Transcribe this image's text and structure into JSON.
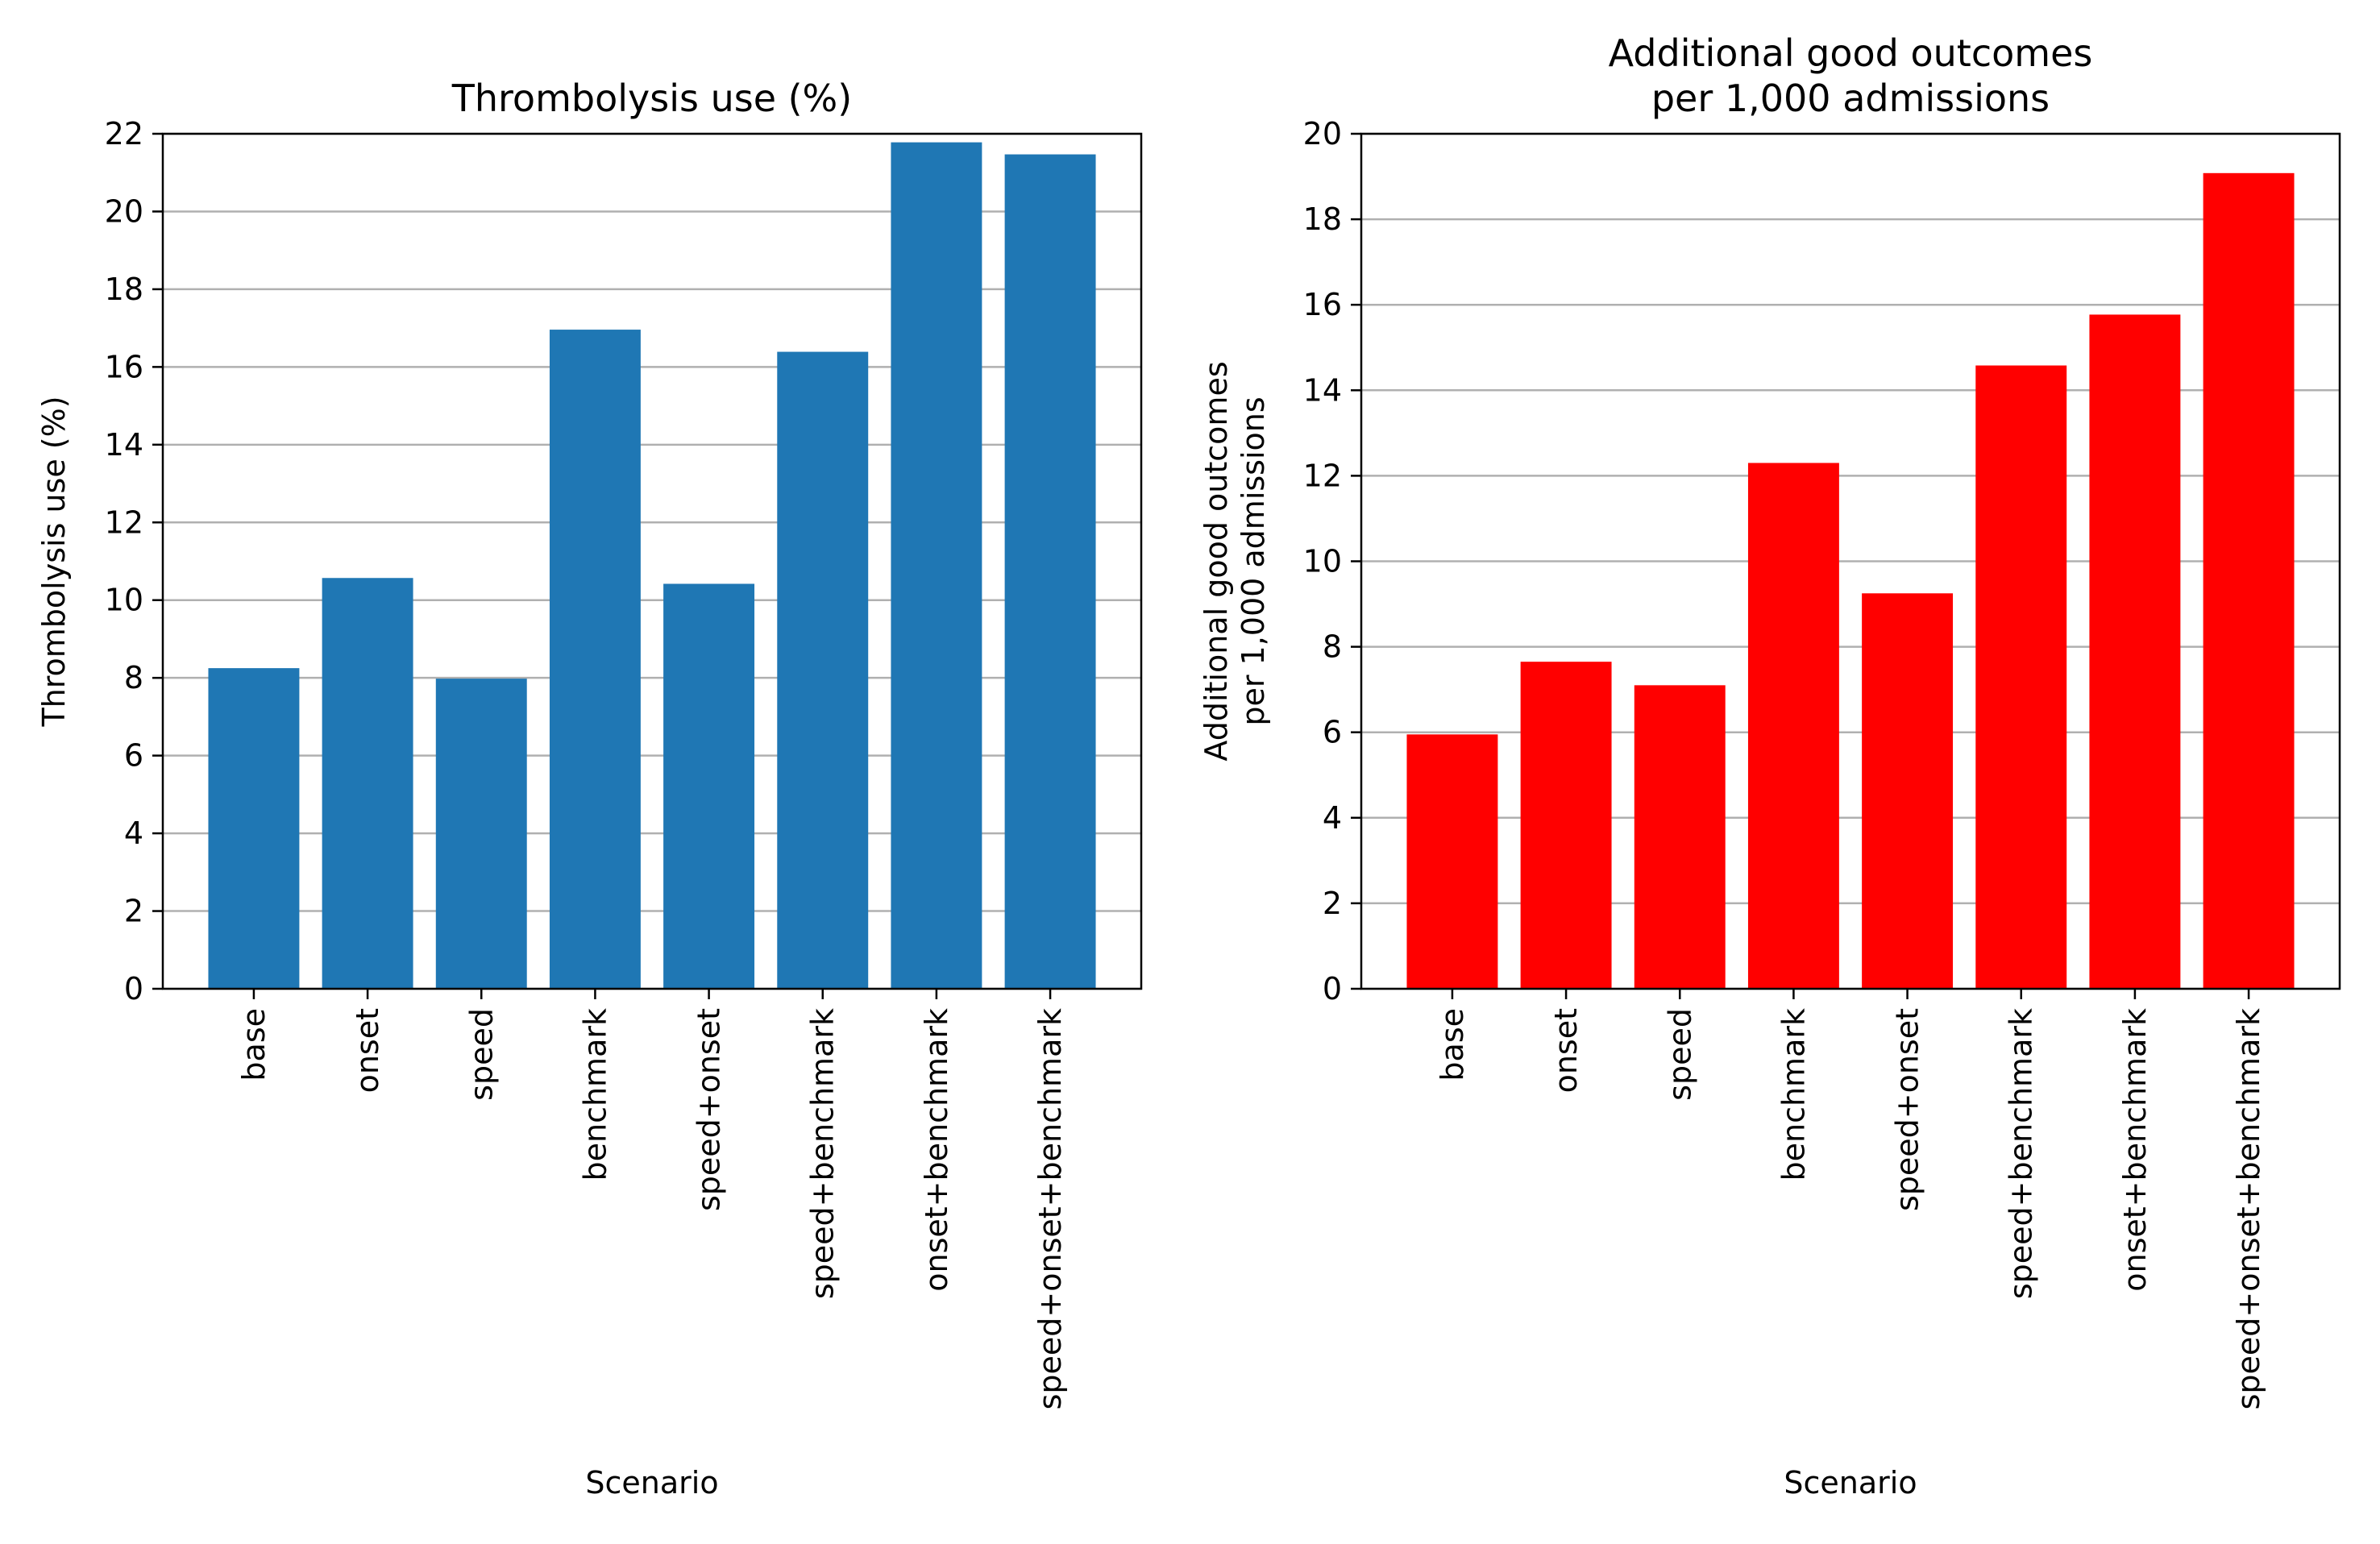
{
  "chart_data": [
    {
      "type": "bar",
      "title": [
        "Thrombolysis use (%)"
      ],
      "xlabel": "Scenario",
      "ylabel": [
        "Thrombolysis use (%)"
      ],
      "categories": [
        "base",
        "onset",
        "speed",
        "benchmark",
        "speed+onset",
        "speed+benchmark",
        "onset+benchmark",
        "speed+onset+benchmark"
      ],
      "values": [
        8.25,
        10.57,
        7.98,
        16.96,
        10.42,
        16.39,
        21.78,
        21.47
      ],
      "ylim": [
        0,
        22
      ],
      "yticks": [
        0,
        2,
        4,
        6,
        8,
        10,
        12,
        14,
        16,
        18,
        20,
        22
      ],
      "color": "#1f77b4",
      "grid": "y"
    },
    {
      "type": "bar",
      "title": [
        "Additional good outcomes",
        "per 1,000 admissions"
      ],
      "xlabel": "Scenario",
      "ylabel": [
        "Additional good outcomes",
        "per 1,000 admissions"
      ],
      "categories": [
        "base",
        "onset",
        "speed",
        "benchmark",
        "speed+onset",
        "speed+benchmark",
        "onset+benchmark",
        "speed+onset+benchmark"
      ],
      "values": [
        5.95,
        7.65,
        7.1,
        12.3,
        9.25,
        14.58,
        15.77,
        19.08
      ],
      "ylim": [
        0,
        20
      ],
      "yticks": [
        0,
        2,
        4,
        6,
        8,
        10,
        12,
        14,
        16,
        18,
        20
      ],
      "color": "#ff0000",
      "grid": "y"
    }
  ]
}
